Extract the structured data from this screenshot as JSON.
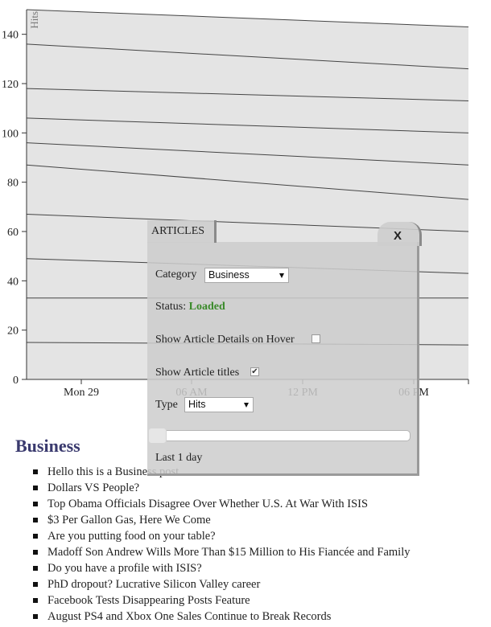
{
  "chart_data": {
    "type": "line",
    "ylabel": "Hits",
    "ylim": [
      0,
      150
    ],
    "yticks": [
      0,
      20,
      40,
      60,
      80,
      100,
      120,
      140
    ],
    "xticks": [
      "Mon 29",
      "06 AM",
      "12 PM",
      "06 PM"
    ],
    "series": [
      {
        "values": [
          150,
          143
        ]
      },
      {
        "values": [
          136,
          126
        ]
      },
      {
        "values": [
          118,
          113
        ]
      },
      {
        "values": [
          106,
          100
        ]
      },
      {
        "values": [
          96,
          87
        ]
      },
      {
        "values": [
          87,
          73
        ]
      },
      {
        "values": [
          67,
          60
        ]
      },
      {
        "values": [
          49,
          43
        ]
      },
      {
        "values": [
          33,
          33
        ]
      },
      {
        "values": [
          15,
          14
        ]
      }
    ],
    "colors": {
      "plot_background": "#e4e4e4",
      "line": "#444444"
    }
  },
  "panel": {
    "tab_label": "ARTICLES",
    "close_label": "X",
    "category_label": "Category",
    "category_value": "Business",
    "status_label": "Status:",
    "status_value": "Loaded",
    "details_label": "Show Article Details on Hover",
    "details_checked": false,
    "titles_label": "Show Article titles",
    "titles_checked": true,
    "type_label": "Type",
    "type_value": "Hits",
    "range_label": "Last 1 day"
  },
  "section_title": "Business",
  "articles": [
    "Hello this is a Business post",
    "Dollars VS People?",
    "Top Obama Officials Disagree Over Whether U.S. At War With ISIS",
    "$3 Per Gallon Gas, Here We Come",
    "Are you putting food on your table?",
    "Madoff Son Andrew Wills More Than $15 Million to His Fiancée and Family",
    "Do you have a profile with ISIS?",
    "PhD dropout? Lucrative Silicon Valley career",
    "Facebook Tests Disappearing Posts Feature",
    "August PS4 and Xbox One Sales Continue to Break Records"
  ]
}
